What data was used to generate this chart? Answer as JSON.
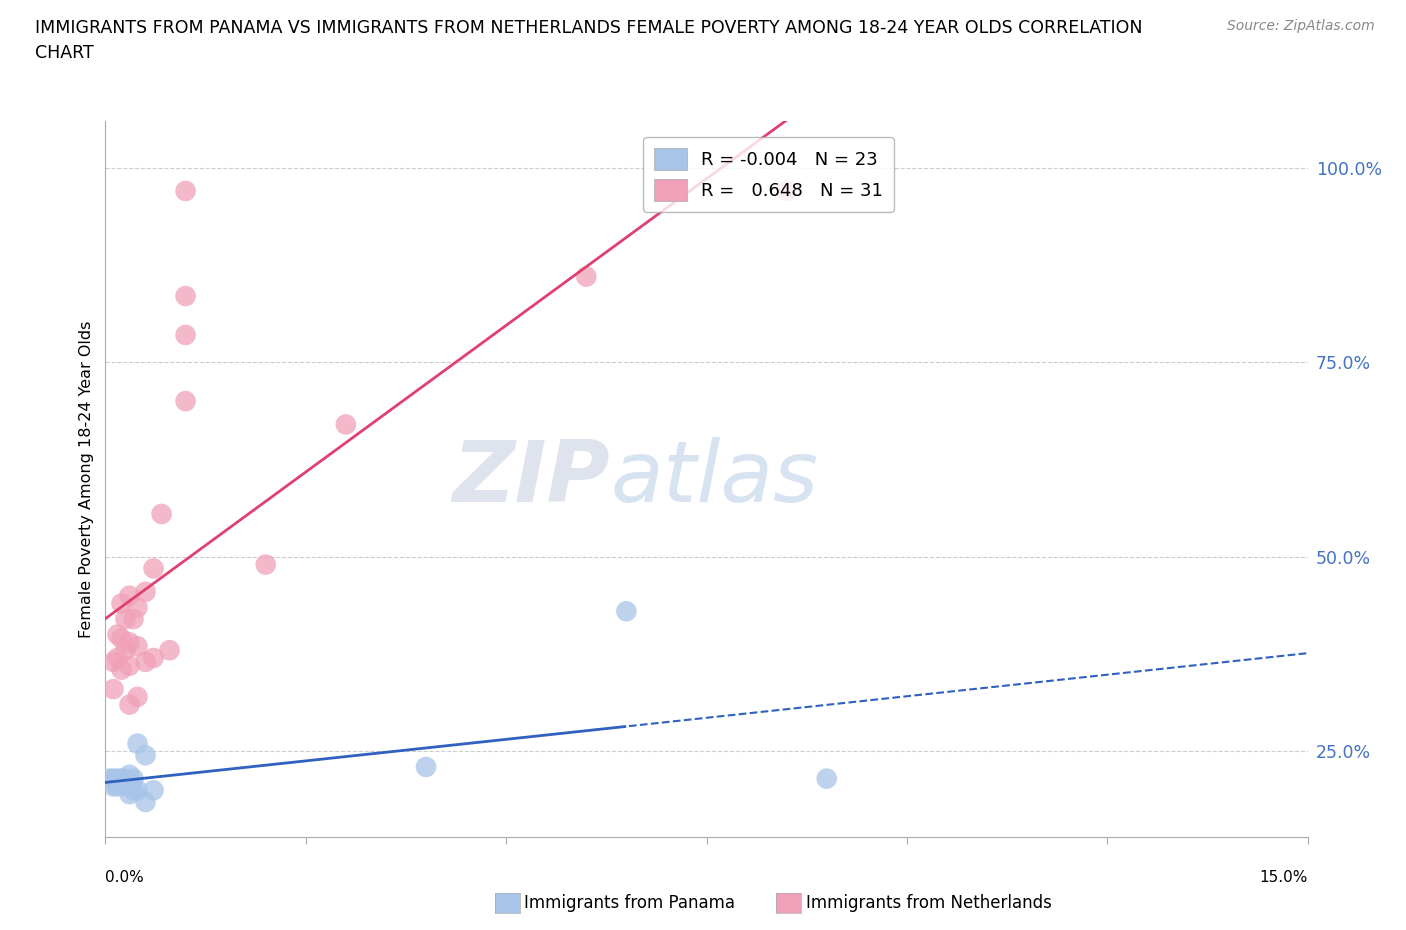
{
  "title_line1": "IMMIGRANTS FROM PANAMA VS IMMIGRANTS FROM NETHERLANDS FEMALE POVERTY AMONG 18-24 YEAR OLDS CORRELATION",
  "title_line2": "CHART",
  "source": "Source: ZipAtlas.com",
  "ylabel": "Female Poverty Among 18-24 Year Olds",
  "xlim": [
    0.0,
    0.15
  ],
  "ylim": [
    0.14,
    1.06
  ],
  "panama_color": "#a8c4e8",
  "netherlands_color": "#f0a0b8",
  "panama_trend_color": "#3060c0",
  "netherlands_trend_color": "#e04070",
  "panama_R": -0.004,
  "panama_N": 23,
  "netherlands_R": 0.648,
  "netherlands_N": 31,
  "right_yticks": [
    0.25,
    0.5,
    0.75,
    1.0
  ],
  "right_yticklabels": [
    "25.0%",
    "50.0%",
    "75.0%",
    "100.0%"
  ],
  "marker_size": 220,
  "panama_x": [
    0.0005,
    0.001,
    0.001,
    0.001,
    0.0015,
    0.0015,
    0.002,
    0.002,
    0.0025,
    0.0025,
    0.003,
    0.003,
    0.003,
    0.0035,
    0.0035,
    0.004,
    0.004,
    0.005,
    0.005,
    0.006,
    0.04,
    0.065,
    0.09
  ],
  "panama_y": [
    0.215,
    0.215,
    0.21,
    0.205,
    0.215,
    0.205,
    0.215,
    0.21,
    0.215,
    0.205,
    0.22,
    0.205,
    0.195,
    0.215,
    0.2,
    0.26,
    0.2,
    0.245,
    0.185,
    0.2,
    0.23,
    0.43,
    0.215
  ],
  "netherlands_x": [
    0.001,
    0.001,
    0.0015,
    0.0015,
    0.002,
    0.002,
    0.002,
    0.0025,
    0.0025,
    0.003,
    0.003,
    0.003,
    0.003,
    0.0035,
    0.004,
    0.004,
    0.004,
    0.005,
    0.005,
    0.006,
    0.006,
    0.007,
    0.008,
    0.01,
    0.01,
    0.01,
    0.01,
    0.02,
    0.03,
    0.06,
    0.085
  ],
  "netherlands_y": [
    0.365,
    0.33,
    0.4,
    0.37,
    0.44,
    0.395,
    0.355,
    0.42,
    0.38,
    0.45,
    0.39,
    0.36,
    0.31,
    0.42,
    0.435,
    0.385,
    0.32,
    0.455,
    0.365,
    0.485,
    0.37,
    0.555,
    0.38,
    0.97,
    0.835,
    0.785,
    0.7,
    0.49,
    0.67,
    0.86,
    0.97
  ]
}
